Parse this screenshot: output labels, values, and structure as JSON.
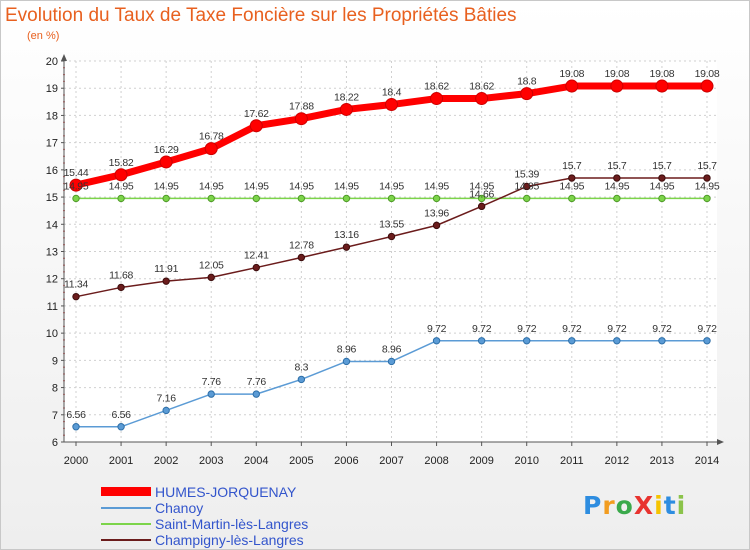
{
  "chart_data": {
    "type": "line",
    "title": "Evolution du Taux de Taxe Foncière sur les Propriétés Bâties",
    "ylabel": "(en %)",
    "xlabel": "",
    "ylim": [
      6,
      20
    ],
    "yticks": [
      "6",
      "7",
      "8",
      "9",
      "10",
      "11",
      "12",
      "13",
      "14",
      "15",
      "16",
      "17",
      "18",
      "19",
      "20"
    ],
    "categories": [
      "2000",
      "2001",
      "2002",
      "2003",
      "2004",
      "2005",
      "2006",
      "2007",
      "2008",
      "2009",
      "2010",
      "2011",
      "2012",
      "2013",
      "2014"
    ],
    "series": [
      {
        "name": "HUMES-JORQUENAY",
        "color": "#ff0000",
        "values": [
          15.44,
          15.82,
          16.29,
          16.78,
          17.62,
          17.88,
          18.22,
          18.4,
          18.62,
          18.62,
          18.8,
          19.08,
          19.08,
          19.08,
          19.08
        ],
        "labels": [
          "15.44",
          "15.82",
          "16.29",
          "16.78",
          "17.62",
          "17.88",
          "18.22",
          "18.4",
          "18.62",
          "18.62",
          "18.8",
          "19.08",
          "19.08",
          "19.08",
          "19.08"
        ]
      },
      {
        "name": "Chanoy",
        "color": "#5b9bd5",
        "values": [
          6.56,
          6.56,
          7.16,
          7.76,
          7.76,
          8.3,
          8.96,
          8.96,
          9.72,
          9.72,
          9.72,
          9.72,
          9.72,
          9.72,
          9.72
        ],
        "labels": [
          "6.56",
          "6.56",
          "7.16",
          "7.76",
          "7.76",
          "8.3",
          "8.96",
          "8.96",
          "9.72",
          "9.72",
          "9.72",
          "9.72",
          "9.72",
          "9.72",
          "9.72"
        ]
      },
      {
        "name": "Saint-Martin-lès-Langres",
        "color": "#7cd44a",
        "values": [
          14.95,
          14.95,
          14.95,
          14.95,
          14.95,
          14.95,
          14.95,
          14.95,
          14.95,
          14.95,
          14.95,
          14.95,
          14.95,
          14.95,
          14.95
        ],
        "labels": [
          "14.95",
          "14.95",
          "14.95",
          "14.95",
          "14.95",
          "14.95",
          "14.95",
          "14.95",
          "14.95",
          "14.95",
          "14.95",
          "14.95",
          "14.95",
          "14.95",
          "14.95"
        ]
      },
      {
        "name": "Champigny-lès-Langres",
        "color": "#6b1c1c",
        "values": [
          11.34,
          11.68,
          11.91,
          12.05,
          12.41,
          12.78,
          13.16,
          13.55,
          13.96,
          14.66,
          15.39,
          15.7,
          15.7,
          15.7,
          15.7
        ],
        "labels": [
          "11.34",
          "11.68",
          "11.91",
          "12.05",
          "12.41",
          "12.78",
          "13.16",
          "13.55",
          "13.96",
          "14.66",
          "15.39",
          "15.7",
          "15.7",
          "15.7",
          "15.7"
        ]
      }
    ],
    "legend": "bottom-left"
  },
  "logo": {
    "text": "ProXiti",
    "letters": [
      "P",
      "r",
      "o",
      "X",
      "i",
      "t",
      "i"
    ],
    "colors": [
      "#2e8de0",
      "#f29c1f",
      "#3aa94b",
      "#e8332f",
      "#f5c400",
      "#2e8de0",
      "#8bc34a"
    ]
  }
}
